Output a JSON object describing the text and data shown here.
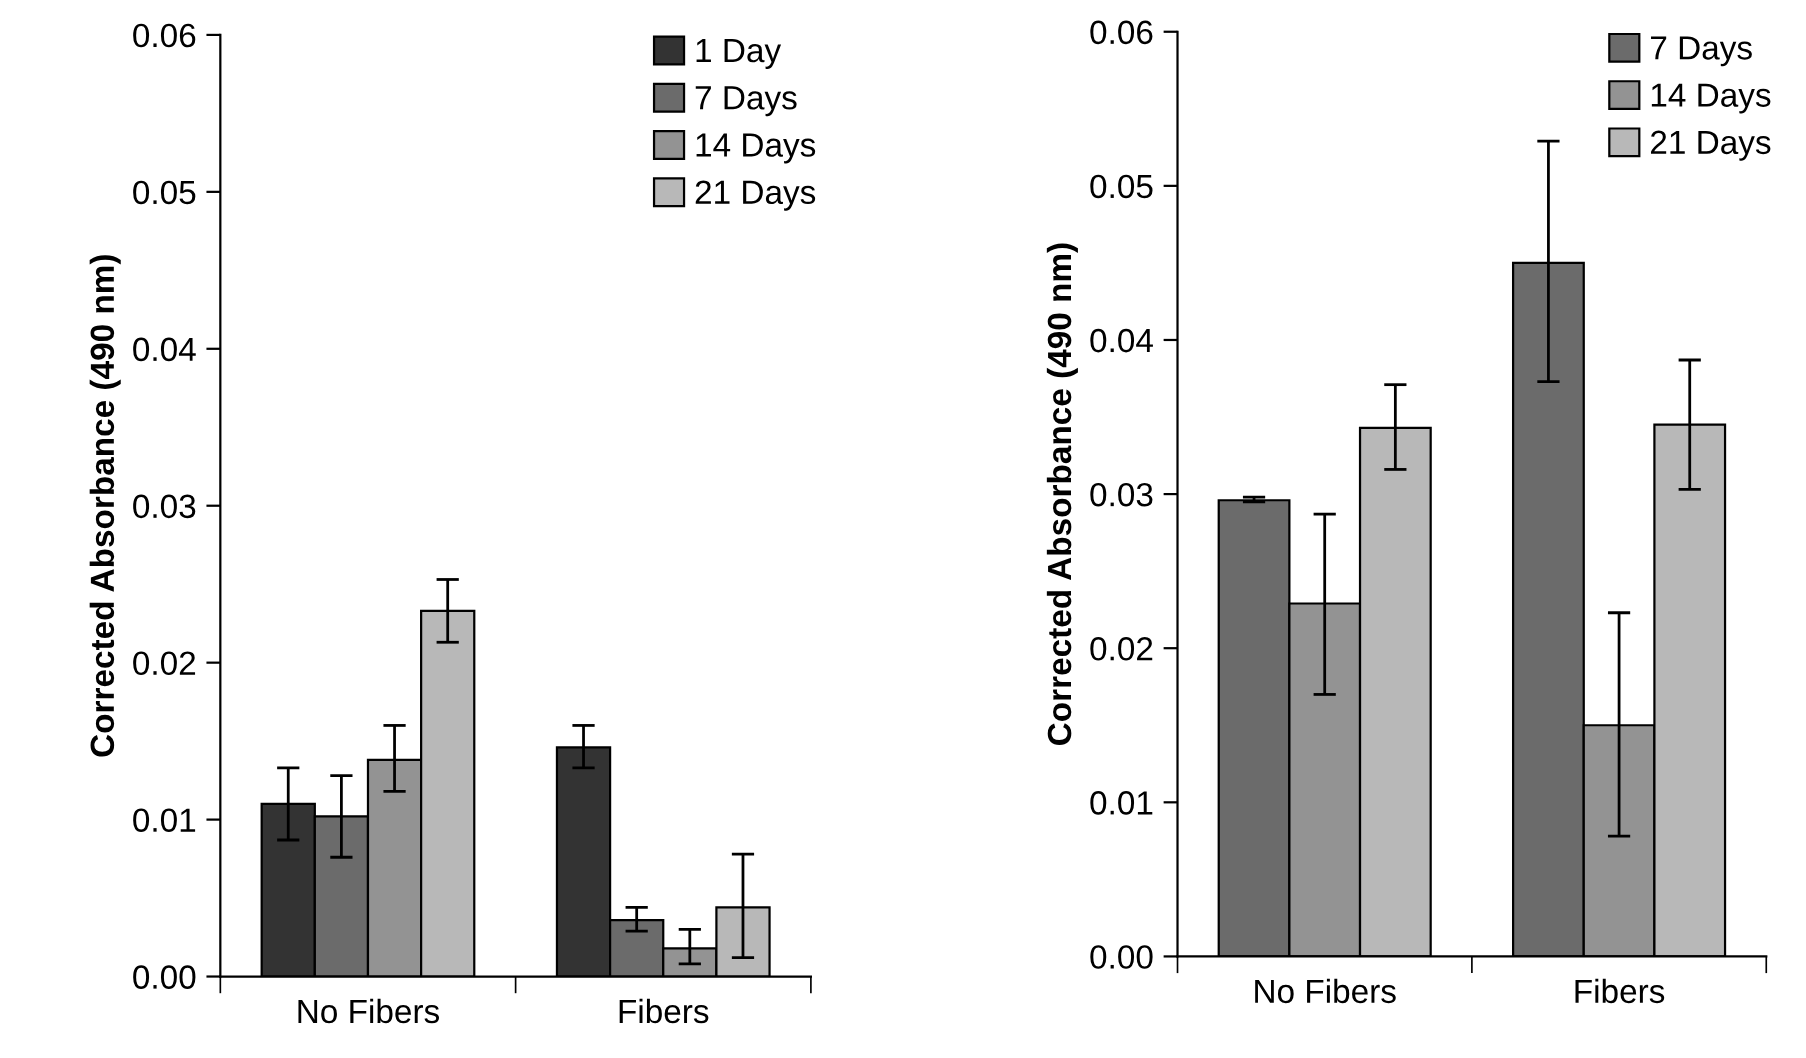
{
  "chart_data": [
    {
      "type": "bar",
      "ylabel": "Corrected Absorbance (490 nm)",
      "categories": [
        "No Fibers",
        "Fibers"
      ],
      "ylim": [
        0,
        0.06
      ],
      "yticks": [
        {
          "value": 0,
          "label": "0.00"
        },
        {
          "value": 0.01,
          "label": "0.01"
        },
        {
          "value": 0.02,
          "label": "0.02"
        },
        {
          "value": 0.03,
          "label": "0.03"
        },
        {
          "value": 0.04,
          "label": "0.04"
        },
        {
          "value": 0.05,
          "label": "0.05"
        },
        {
          "value": 0.06,
          "label": "0.06"
        }
      ],
      "legend": "top right",
      "grid": false,
      "series": [
        {
          "name": "1 Day",
          "color": "#333333",
          "values": [
            0.011,
            0.0146
          ],
          "errors": [
            [
              0.0087,
              0.0133
            ],
            [
              0.0133,
              0.016
            ]
          ]
        },
        {
          "name": "7 Days",
          "color": "#6b6b6b",
          "values": [
            0.0102,
            0.0036
          ],
          "errors": [
            [
              0.0076,
              0.0128
            ],
            [
              0.0029,
              0.0044
            ]
          ]
        },
        {
          "name": "14 Days",
          "color": "#939393",
          "values": [
            0.0138,
            0.0018
          ],
          "errors": [
            [
              0.0118,
              0.016
            ],
            [
              0.0008,
              0.003
            ]
          ]
        },
        {
          "name": "21 Days",
          "color": "#b8b8b8",
          "values": [
            0.0233,
            0.0044
          ],
          "errors": [
            [
              0.0213,
              0.0253
            ],
            [
              0.0012,
              0.0078
            ]
          ]
        }
      ]
    },
    {
      "type": "bar",
      "ylabel": "Corrected Absorbance (490 nm)",
      "categories": [
        "No Fibers",
        "Fibers"
      ],
      "ylim": [
        0,
        0.06
      ],
      "yticks": [
        {
          "value": 0,
          "label": "0.00"
        },
        {
          "value": 0.01,
          "label": "0.01"
        },
        {
          "value": 0.02,
          "label": "0.02"
        },
        {
          "value": 0.03,
          "label": "0.03"
        },
        {
          "value": 0.04,
          "label": "0.04"
        },
        {
          "value": 0.05,
          "label": "0.05"
        },
        {
          "value": 0.06,
          "label": "0.06"
        }
      ],
      "legend": "top right",
      "grid": false,
      "series": [
        {
          "name": "7 Days",
          "color": "#6b6b6b",
          "values": [
            0.0296,
            0.045
          ],
          "errors": [
            [
              0.0295,
              0.0298
            ],
            [
              0.0373,
              0.0529
            ]
          ]
        },
        {
          "name": "14 Days",
          "color": "#939393",
          "values": [
            0.0229,
            0.015
          ],
          "errors": [
            [
              0.017,
              0.0287
            ],
            [
              0.0078,
              0.0223
            ]
          ]
        },
        {
          "name": "21 Days",
          "color": "#b8b8b8",
          "values": [
            0.0343,
            0.0345
          ],
          "errors": [
            [
              0.0316,
              0.0371
            ],
            [
              0.0303,
              0.0387
            ]
          ]
        }
      ]
    }
  ]
}
